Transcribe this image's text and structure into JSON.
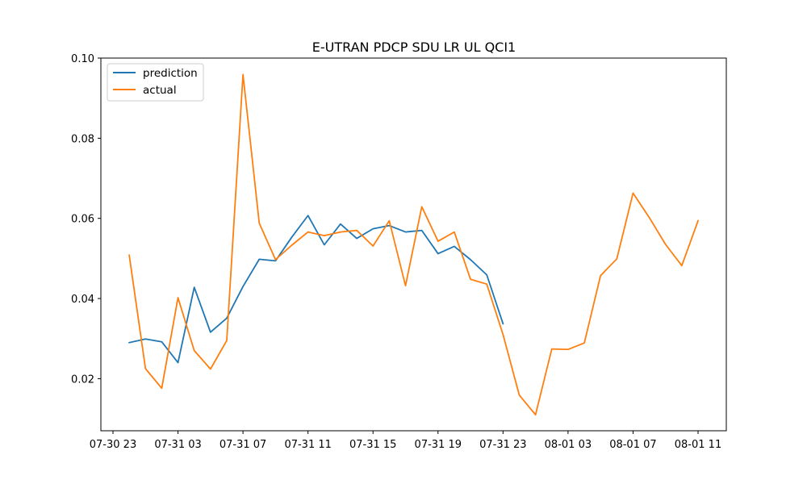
{
  "chart_data": {
    "type": "line",
    "title": "E-UTRAN PDCP SDU LR UL QCI1",
    "xlabel": "",
    "ylabel": "",
    "x_tick_labels": [
      "07-30 23",
      "07-31 03",
      "07-31 07",
      "07-31 11",
      "07-31 15",
      "07-31 19",
      "07-31 23",
      "08-01 03",
      "08-01 07",
      "08-01 11"
    ],
    "y_tick_labels": [
      "0.02",
      "0.04",
      "0.06",
      "0.08",
      "0.10"
    ],
    "ylim": [
      0.007,
      0.1
    ],
    "legend_position": "top-left",
    "grid": false,
    "series": [
      {
        "name": "prediction",
        "color": "#1f77b4",
        "points": [
          [
            "07-31 00",
            0.029
          ],
          [
            "07-31 01",
            0.0299
          ],
          [
            "07-31 02",
            0.0292
          ],
          [
            "07-31 03",
            0.024
          ],
          [
            "07-31 04",
            0.0428
          ],
          [
            "07-31 05",
            0.0316
          ],
          [
            "07-31 06",
            0.0351
          ],
          [
            "07-31 07",
            0.043
          ],
          [
            "07-31 08",
            0.0498
          ],
          [
            "07-31 09",
            0.0494
          ],
          [
            "07-31 10",
            0.0553
          ],
          [
            "07-31 11",
            0.0607
          ],
          [
            "07-31 12",
            0.0534
          ],
          [
            "07-31 13",
            0.0586
          ],
          [
            "07-31 14",
            0.055
          ],
          [
            "07-31 15",
            0.0574
          ],
          [
            "07-31 16",
            0.0582
          ],
          [
            "07-31 17",
            0.0566
          ],
          [
            "07-31 18",
            0.057
          ],
          [
            "07-31 19",
            0.0512
          ],
          [
            "07-31 20",
            0.053
          ],
          [
            "07-31 21",
            0.0497
          ],
          [
            "07-31 22",
            0.0459
          ],
          [
            "07-31 23",
            0.0337
          ]
        ]
      },
      {
        "name": "actual",
        "color": "#ff7f0e",
        "points": [
          [
            "07-31 00",
            0.0508
          ],
          [
            "07-31 01",
            0.0225
          ],
          [
            "07-31 02",
            0.0176
          ],
          [
            "07-31 03",
            0.0402
          ],
          [
            "07-31 04",
            0.027
          ],
          [
            "07-31 05",
            0.0224
          ],
          [
            "07-31 06",
            0.0295
          ],
          [
            "07-31 07",
            0.0959
          ],
          [
            "07-31 08",
            0.0588
          ],
          [
            "07-31 09",
            0.0497
          ],
          [
            "07-31 10",
            0.0533
          ],
          [
            "07-31 11",
            0.0566
          ],
          [
            "07-31 12",
            0.0557
          ],
          [
            "07-31 13",
            0.0566
          ],
          [
            "07-31 14",
            0.057
          ],
          [
            "07-31 15",
            0.0531
          ],
          [
            "07-31 16",
            0.0594
          ],
          [
            "07-31 17",
            0.0432
          ],
          [
            "07-31 18",
            0.0629
          ],
          [
            "07-31 19",
            0.0543
          ],
          [
            "07-31 20",
            0.0566
          ],
          [
            "07-31 21",
            0.0448
          ],
          [
            "07-31 22",
            0.0436
          ],
          [
            "07-31 23",
            0.031
          ],
          [
            "08-01 00",
            0.0159
          ],
          [
            "08-01 01",
            0.011
          ],
          [
            "08-01 02",
            0.0274
          ],
          [
            "08-01 03",
            0.0273
          ],
          [
            "08-01 04",
            0.0289
          ],
          [
            "08-01 05",
            0.0457
          ],
          [
            "08-01 06",
            0.0499
          ],
          [
            "08-01 07",
            0.0663
          ],
          [
            "08-01 08",
            0.0602
          ],
          [
            "08-01 09",
            0.0535
          ],
          [
            "08-01 10",
            0.0482
          ],
          [
            "08-01 11",
            0.0594
          ]
        ]
      }
    ]
  }
}
